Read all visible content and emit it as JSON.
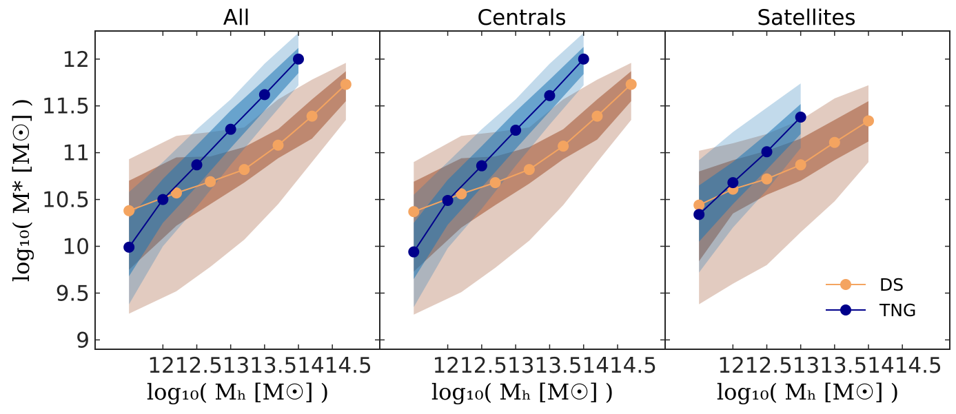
{
  "chart_data": {
    "type": "line",
    "xlabel": "log₁₀( Mₕ [M☉] )",
    "ylabel": "log₁₀( M* [M☉] )",
    "xlim": [
      11.0,
      15.2
    ],
    "ylim": [
      8.9,
      12.3
    ],
    "x_ticks": [
      "12",
      "12.5",
      "13",
      "13.5",
      "14",
      "14.5"
    ],
    "x_tick_values": [
      12,
      12.5,
      13,
      13.5,
      14,
      14.5
    ],
    "y_ticks": [
      "9",
      "9.5",
      "10",
      "10.5",
      "11",
      "11.5",
      "12"
    ],
    "y_tick_values": [
      9,
      9.5,
      10,
      10.5,
      11,
      11.5,
      12
    ],
    "legend": {
      "location": "lower-right",
      "entries": [
        "DS",
        "TNG"
      ]
    },
    "colors": {
      "DS": "#f4a460",
      "TNG": "#00008b",
      "DS_band": "#a0522d",
      "TNG_band": "#1f77b4"
    },
    "panels": [
      {
        "title": "All",
        "series": [
          {
            "name": "DS",
            "x": [
              11.5,
              12.2,
              12.7,
              13.2,
              13.7,
              14.2,
              14.7
            ],
            "y": [
              10.38,
              10.57,
              10.69,
              10.82,
              11.08,
              11.39,
              11.73
            ],
            "inner_lo": [
              9.75,
              10.22,
              10.45,
              10.68,
              10.94,
              11.15,
              11.55
            ],
            "inner_hi": [
              10.7,
              10.95,
              10.96,
              11.06,
              11.25,
              11.57,
              11.87
            ],
            "outer_lo": [
              9.28,
              9.52,
              9.78,
              10.07,
              10.45,
              10.9,
              11.35
            ],
            "outer_hi": [
              10.93,
              11.18,
              11.22,
              11.27,
              11.57,
              11.78,
              11.96
            ]
          },
          {
            "name": "TNG",
            "x": [
              11.5,
              12.0,
              12.5,
              13.0,
              13.5,
              14.0
            ],
            "y": [
              9.99,
              10.5,
              10.87,
              11.25,
              11.62,
              12.0
            ],
            "inner_lo": [
              9.68,
              10.25,
              10.64,
              11.05,
              11.45,
              11.85
            ],
            "inner_hi": [
              10.3,
              10.72,
              11.08,
              11.45,
              11.78,
              12.12
            ],
            "outer_lo": [
              9.38,
              10.0,
              10.42,
              10.87,
              11.3,
              11.72
            ],
            "outer_hi": [
              10.58,
              10.9,
              11.25,
              11.57,
              11.95,
              12.28
            ]
          }
        ]
      },
      {
        "title": "Centrals",
        "series": [
          {
            "name": "DS",
            "x": [
              11.5,
              12.2,
              12.7,
              13.2,
              13.7,
              14.2,
              14.7
            ],
            "y": [
              10.37,
              10.56,
              10.68,
              10.82,
              11.07,
              11.39,
              11.73
            ],
            "inner_lo": [
              9.73,
              10.2,
              10.44,
              10.67,
              10.93,
              11.14,
              11.55
            ],
            "inner_hi": [
              10.69,
              10.94,
              10.96,
              11.06,
              11.25,
              11.57,
              11.87
            ],
            "outer_lo": [
              9.27,
              9.51,
              9.77,
              10.06,
              10.44,
              10.9,
              11.35
            ],
            "outer_hi": [
              10.9,
              11.18,
              11.22,
              11.27,
              11.57,
              11.78,
              11.96
            ]
          },
          {
            "name": "TNG",
            "x": [
              11.5,
              12.0,
              12.5,
              13.0,
              13.5,
              14.0
            ],
            "y": [
              9.94,
              10.49,
              10.86,
              11.24,
              11.61,
              12.0
            ],
            "inner_lo": [
              9.65,
              10.23,
              10.63,
              11.04,
              11.44,
              11.84
            ],
            "inner_hi": [
              10.25,
              10.71,
              11.07,
              11.44,
              11.78,
              12.13
            ],
            "outer_lo": [
              9.35,
              9.98,
              10.4,
              10.86,
              11.3,
              11.72
            ],
            "outer_hi": [
              10.55,
              10.9,
              11.25,
              11.57,
              11.95,
              12.28
            ]
          }
        ]
      },
      {
        "title": "Satellites",
        "series": [
          {
            "name": "DS",
            "x": [
              11.5,
              12.0,
              12.5,
              13.0,
              13.5,
              14.0
            ],
            "y": [
              10.44,
              10.61,
              10.72,
              10.87,
              11.11,
              11.34
            ],
            "inner_lo": [
              9.84,
              10.35,
              10.55,
              10.7,
              10.92,
              11.12
            ],
            "inner_hi": [
              10.8,
              10.92,
              11.02,
              11.15,
              11.35,
              11.55
            ],
            "outer_lo": [
              9.38,
              9.6,
              9.8,
              10.15,
              10.48,
              10.9
            ],
            "outer_hi": [
              11.02,
              11.1,
              11.2,
              11.35,
              11.58,
              11.72
            ]
          },
          {
            "name": "TNG",
            "x": [
              11.5,
              12.0,
              12.5,
              13.0
            ],
            "y": [
              10.34,
              10.68,
              11.01,
              11.38
            ],
            "inner_lo": [
              10.05,
              10.45,
              10.82,
              11.2
            ],
            "inner_hi": [
              10.65,
              10.9,
              11.2,
              11.52
            ],
            "outer_lo": [
              9.72,
              10.2,
              10.6,
              11.05
            ],
            "outer_hi": [
              10.92,
              11.22,
              11.48,
              11.74
            ]
          }
        ]
      }
    ]
  }
}
